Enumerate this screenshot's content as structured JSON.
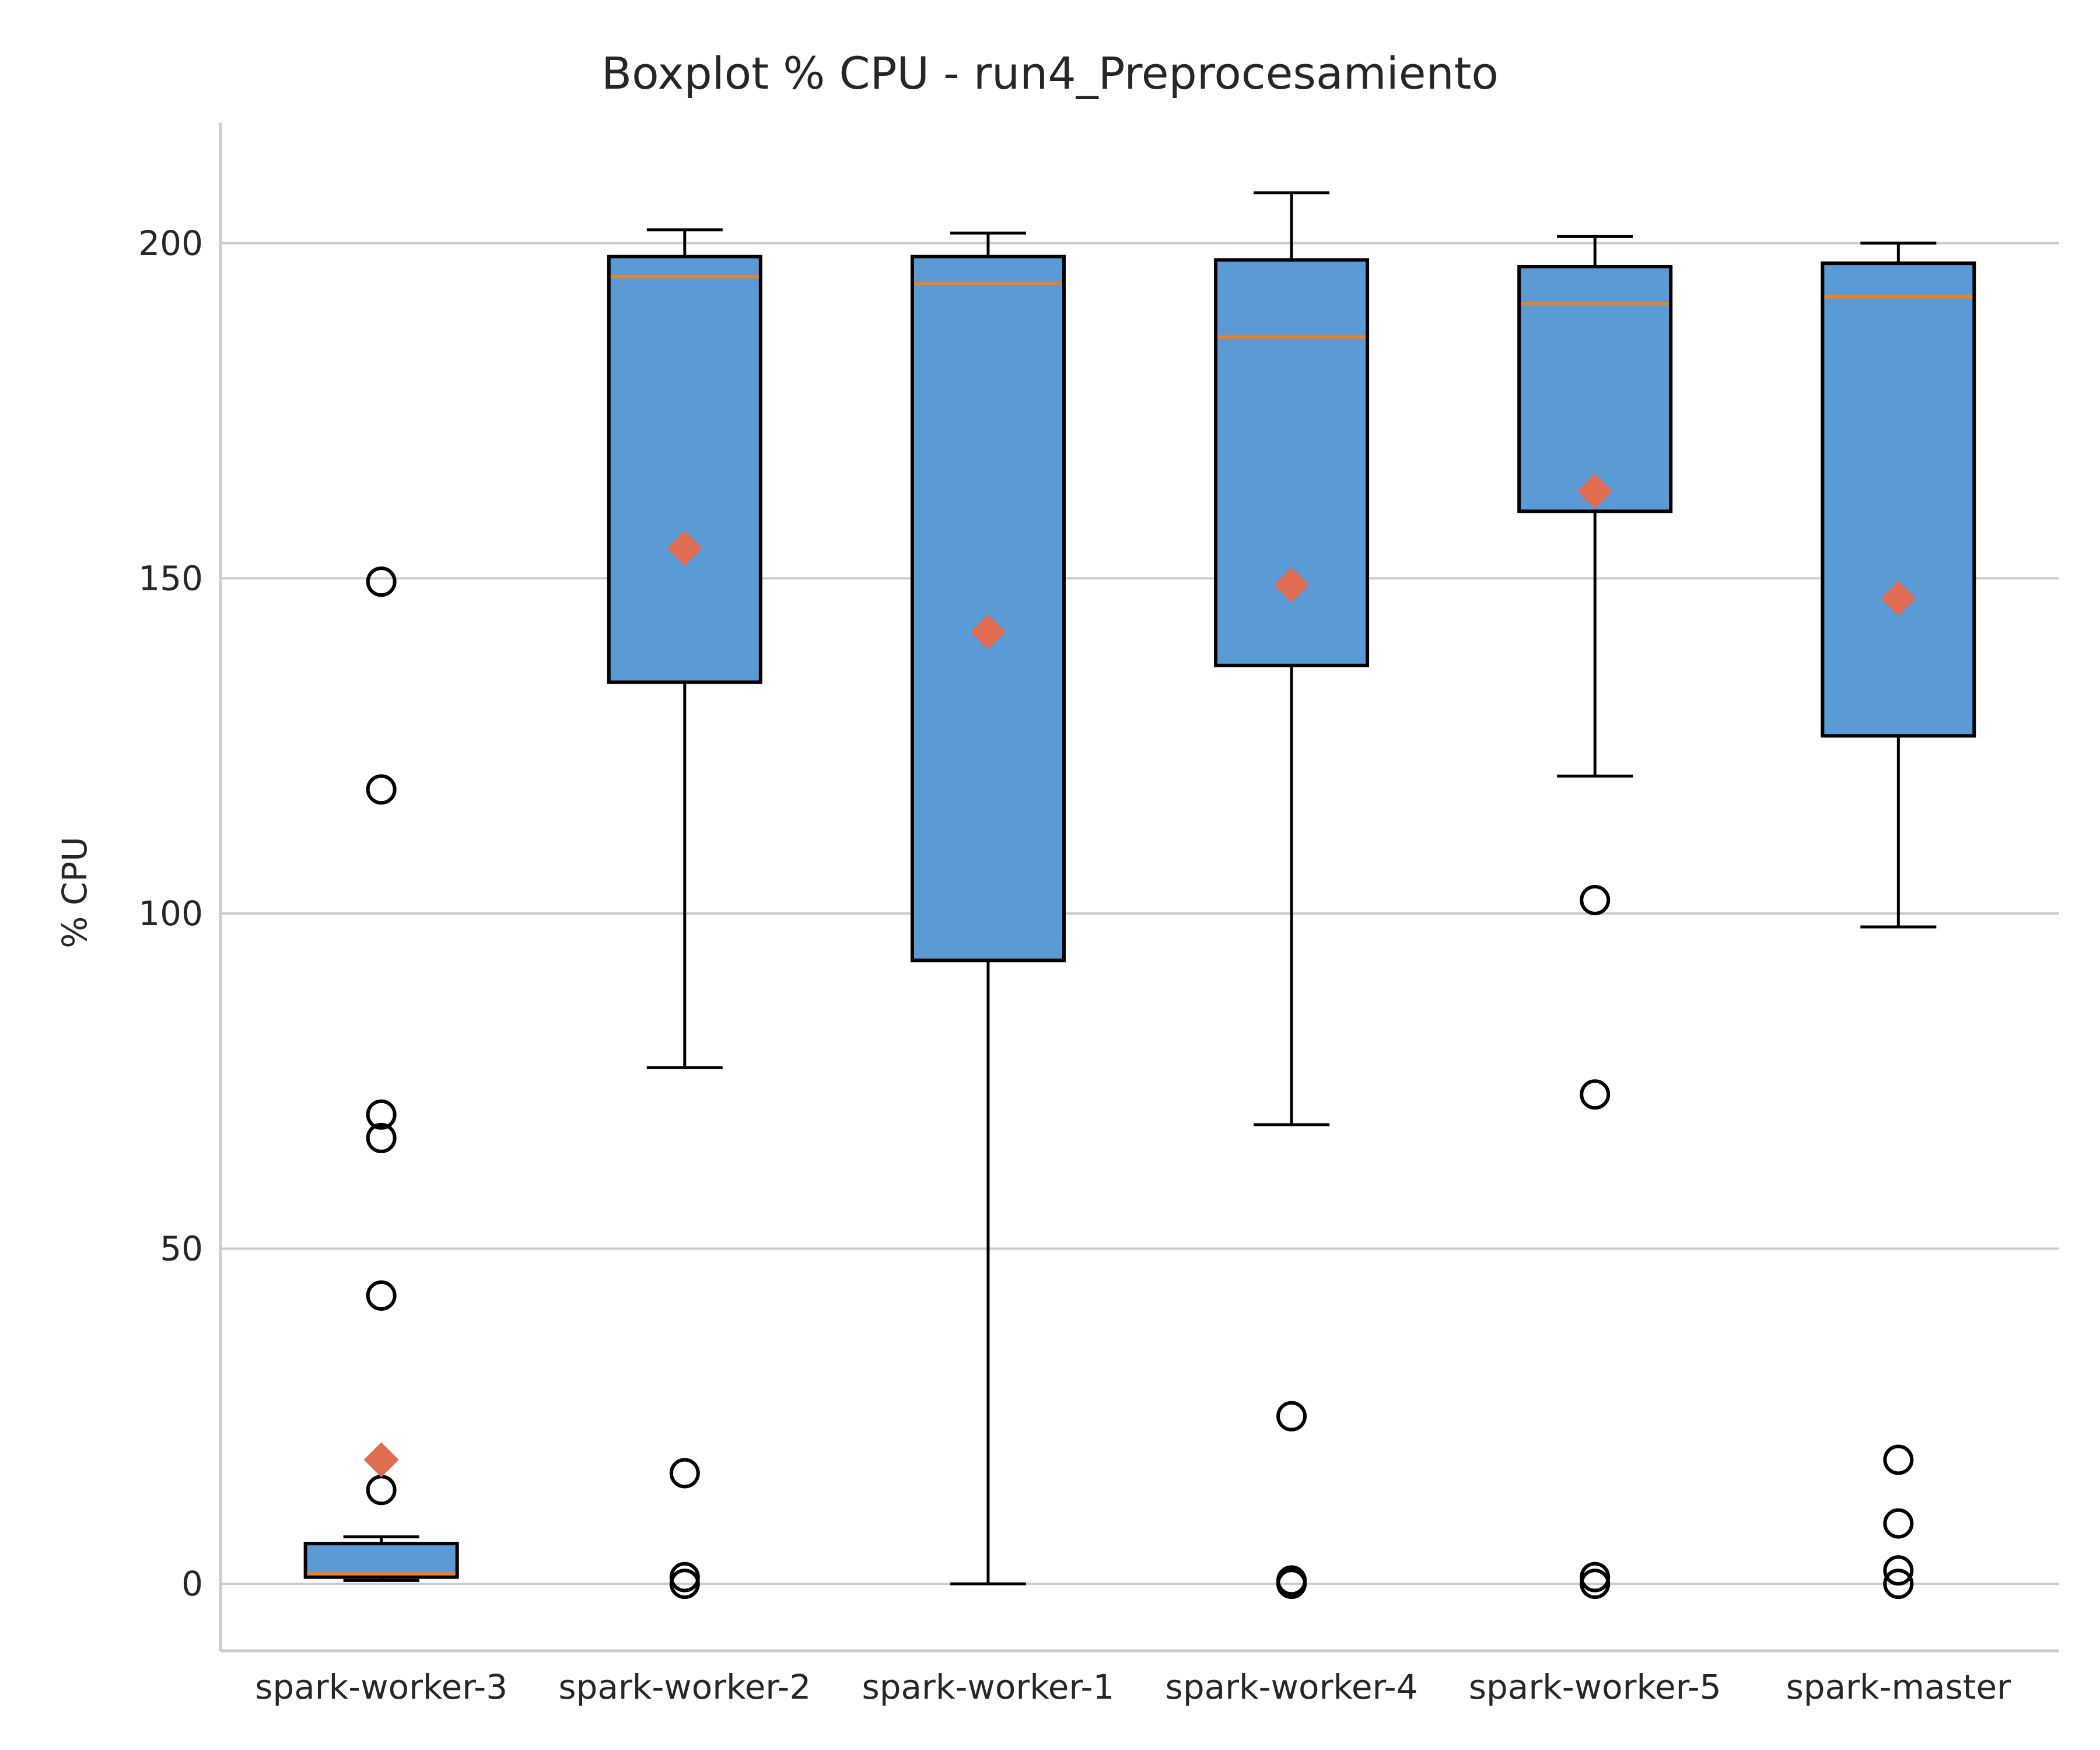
{
  "chart_data": {
    "type": "boxplot",
    "title": "Boxplot % CPU - run4_Preprocesamiento",
    "xlabel": "",
    "ylabel": "% CPU",
    "ylim": [
      -10,
      218
    ],
    "yticks": [
      0,
      50,
      100,
      150,
      200
    ],
    "grid": "horizontal",
    "legend": "none",
    "colors": {
      "box_fill": "#5b9bd5",
      "box_edge": "#000000",
      "median": "#e8822a",
      "mean_marker": "#e06c52",
      "grid": "#cccccc",
      "axis": "#cccccc",
      "text": "#262626"
    },
    "categories": [
      "spark-worker-3",
      "spark-worker-2",
      "spark-worker-1",
      "spark-worker-4",
      "spark-worker-5",
      "spark-master"
    ],
    "boxes": [
      {
        "label": "spark-worker-3",
        "whisker_low": 0.5,
        "q1": 1,
        "median": 1.5,
        "q3": 6,
        "whisker_high": 7,
        "mean": 18.5,
        "outliers": [
          14,
          43,
          66.5,
          70,
          118.5,
          149.5
        ]
      },
      {
        "label": "spark-worker-2",
        "whisker_low": 77,
        "q1": 134.5,
        "median": 195,
        "q3": 198,
        "whisker_high": 202,
        "mean": 154.5,
        "outliers": [
          0,
          1,
          16.5
        ]
      },
      {
        "label": "spark-worker-1",
        "whisker_low": 0,
        "q1": 93,
        "median": 194,
        "q3": 198,
        "whisker_high": 201.5,
        "mean": 142,
        "outliers": []
      },
      {
        "label": "spark-worker-4",
        "whisker_low": 68.5,
        "q1": 137,
        "median": 186,
        "q3": 197.5,
        "whisker_high": 207.5,
        "mean": 149,
        "outliers": [
          0,
          0.5,
          25
        ]
      },
      {
        "label": "spark-worker-5",
        "whisker_low": 120.5,
        "q1": 160,
        "median": 191,
        "q3": 196.5,
        "whisker_high": 201,
        "mean": 163,
        "outliers": [
          0,
          1,
          73,
          102
        ]
      },
      {
        "label": "spark-master",
        "whisker_low": 98,
        "q1": 126.5,
        "median": 192,
        "q3": 197,
        "whisker_high": 200,
        "mean": 147,
        "outliers": [
          0,
          2,
          9,
          18.5
        ]
      }
    ]
  }
}
